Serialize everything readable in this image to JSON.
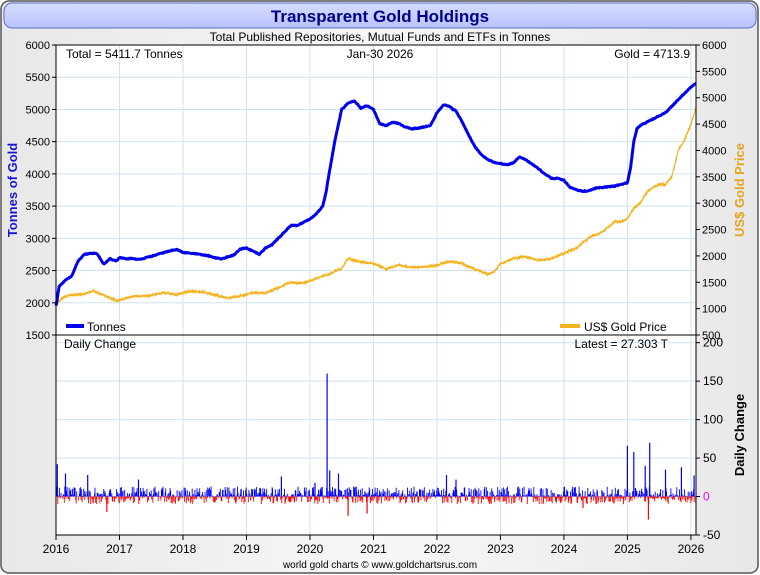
{
  "title": "Transparent Gold Holdings",
  "subtitle": "Total Published Repositories, Mutual Funds and ETFs in Tonnes",
  "footer": "world gold charts © www.goldchartsrus.com",
  "colors": {
    "tonnes": "#0000ee",
    "gold_price": "#f5b21c",
    "positive_change": "#0000ff",
    "negative_change": "#ff0000",
    "zero_label": "#ff00ff",
    "title_text": "#00008b",
    "grid": "#cfe3f2"
  },
  "chart_data": [
    {
      "type": "line",
      "name": "tonnes-and-price",
      "annotations": {
        "total": "Total = 5411.7 Tonnes",
        "date": "Jan-30  2026",
        "gold": "Gold = 4713.9"
      },
      "ylabel_left": "Tonnes of Gold",
      "ylabel_right": "US$ Gold Price",
      "ylim_left": [
        1500,
        6000
      ],
      "ylim_right": [
        500,
        6000
      ],
      "yticks_left": [
        1500,
        2000,
        2500,
        3000,
        3500,
        4000,
        4500,
        5000,
        5500,
        6000
      ],
      "yticks_right": [
        500,
        1000,
        1500,
        2000,
        2500,
        3000,
        3500,
        4000,
        4500,
        5000,
        5500,
        6000
      ],
      "xlim": [
        2016.0,
        2026.08
      ],
      "xticks": [
        "2016",
        "2017",
        "2018",
        "2019",
        "2020",
        "2021",
        "2022",
        "2023",
        "2024",
        "2025",
        "2026"
      ],
      "grid": true,
      "legend": [
        {
          "label": "Tonnes",
          "position": "bottom-left"
        },
        {
          "label": "US$ Gold Price",
          "position": "bottom-right"
        }
      ],
      "series": [
        {
          "name": "Tonnes",
          "axis": "left",
          "x": [
            2016.0,
            2016.05,
            2016.15,
            2016.25,
            2016.35,
            2016.45,
            2016.55,
            2016.65,
            2016.75,
            2016.85,
            2016.95,
            2017.0,
            2017.1,
            2017.2,
            2017.3,
            2017.5,
            2017.7,
            2017.9,
            2018.0,
            2018.2,
            2018.4,
            2018.5,
            2018.6,
            2018.7,
            2018.8,
            2018.9,
            2019.0,
            2019.1,
            2019.2,
            2019.3,
            2019.4,
            2019.5,
            2019.6,
            2019.7,
            2019.8,
            2019.9,
            2020.0,
            2020.1,
            2020.2,
            2020.25,
            2020.3,
            2020.4,
            2020.5,
            2020.6,
            2020.7,
            2020.75,
            2020.8,
            2020.9,
            2021.0,
            2021.1,
            2021.2,
            2021.3,
            2021.4,
            2021.5,
            2021.6,
            2021.7,
            2021.8,
            2021.9,
            2022.0,
            2022.1,
            2022.2,
            2022.25,
            2022.3,
            2022.4,
            2022.5,
            2022.6,
            2022.7,
            2022.8,
            2022.9,
            2023.0,
            2023.1,
            2023.2,
            2023.3,
            2023.4,
            2023.5,
            2023.6,
            2023.7,
            2023.8,
            2023.9,
            2024.0,
            2024.1,
            2024.2,
            2024.3,
            2024.4,
            2024.5,
            2024.6,
            2024.7,
            2024.8,
            2024.9,
            2025.0,
            2025.05,
            2025.1,
            2025.15,
            2025.2,
            2025.3,
            2025.4,
            2025.5,
            2025.6,
            2025.7,
            2025.8,
            2025.9,
            2026.0,
            2026.08
          ],
          "values": [
            1950,
            2250,
            2350,
            2420,
            2650,
            2750,
            2770,
            2760,
            2600,
            2680,
            2650,
            2700,
            2680,
            2690,
            2670,
            2720,
            2780,
            2830,
            2780,
            2760,
            2730,
            2700,
            2680,
            2710,
            2740,
            2830,
            2850,
            2800,
            2750,
            2850,
            2900,
            3000,
            3100,
            3200,
            3200,
            3250,
            3300,
            3380,
            3500,
            3700,
            4000,
            4550,
            5000,
            5100,
            5130,
            5080,
            5020,
            5060,
            5000,
            4780,
            4750,
            4800,
            4780,
            4730,
            4700,
            4710,
            4730,
            4750,
            4950,
            5070,
            5050,
            5000,
            4980,
            4800,
            4600,
            4420,
            4300,
            4220,
            4180,
            4160,
            4140,
            4170,
            4260,
            4220,
            4150,
            4080,
            4000,
            3930,
            3930,
            3900,
            3790,
            3750,
            3730,
            3740,
            3780,
            3790,
            3800,
            3810,
            3840,
            3860,
            4100,
            4500,
            4700,
            4750,
            4800,
            4850,
            4900,
            4950,
            5050,
            5150,
            5250,
            5350,
            5400
          ]
        },
        {
          "name": "US$ Gold Price",
          "axis": "right",
          "x": [
            2016.0,
            2016.1,
            2016.2,
            2016.4,
            2016.6,
            2016.8,
            2016.95,
            2017.2,
            2017.5,
            2017.7,
            2017.9,
            2018.1,
            2018.3,
            2018.5,
            2018.7,
            2018.9,
            2019.1,
            2019.3,
            2019.5,
            2019.7,
            2019.9,
            2020.1,
            2020.2,
            2020.3,
            2020.5,
            2020.6,
            2020.75,
            2020.9,
            2021.0,
            2021.2,
            2021.4,
            2021.6,
            2021.8,
            2022.0,
            2022.2,
            2022.4,
            2022.6,
            2022.8,
            2022.9,
            2023.0,
            2023.2,
            2023.4,
            2023.6,
            2023.8,
            2024.0,
            2024.2,
            2024.4,
            2024.6,
            2024.8,
            2024.9,
            2025.0,
            2025.1,
            2025.2,
            2025.3,
            2025.4,
            2025.5,
            2025.6,
            2025.7,
            2025.8,
            2025.9,
            2026.0,
            2026.08
          ],
          "values": [
            1100,
            1200,
            1250,
            1270,
            1330,
            1230,
            1150,
            1230,
            1250,
            1300,
            1270,
            1330,
            1320,
            1260,
            1200,
            1240,
            1300,
            1290,
            1400,
            1500,
            1480,
            1570,
            1620,
            1650,
            1770,
            1950,
            1900,
            1870,
            1860,
            1750,
            1830,
            1780,
            1790,
            1820,
            1900,
            1850,
            1750,
            1650,
            1700,
            1850,
            1950,
            1980,
            1920,
            1950,
            2050,
            2150,
            2350,
            2450,
            2650,
            2650,
            2700,
            2900,
            3000,
            3200,
            3300,
            3350,
            3350,
            3500,
            4000,
            4200,
            4500,
            4800
          ]
        }
      ]
    },
    {
      "type": "bar",
      "name": "daily-change",
      "label": "Daily Change",
      "latest": "Latest = 27.303 T",
      "ylabel": "Daily Change",
      "ylim": [
        -50,
        210
      ],
      "yticks": [
        -50,
        0,
        50,
        100,
        150,
        200
      ],
      "xlim": [
        2016.0,
        2026.08
      ],
      "xticks": [
        "2016",
        "2017",
        "2018",
        "2019",
        "2020",
        "2021",
        "2022",
        "2023",
        "2024",
        "2025",
        "2026"
      ],
      "grid": true,
      "spikes": [
        {
          "x": 2016.02,
          "value": 42
        },
        {
          "x": 2016.15,
          "value": 30
        },
        {
          "x": 2016.5,
          "value": 28
        },
        {
          "x": 2016.8,
          "value": -20
        },
        {
          "x": 2017.3,
          "value": 22
        },
        {
          "x": 2019.55,
          "value": 26
        },
        {
          "x": 2020.08,
          "value": 18
        },
        {
          "x": 2020.27,
          "value": 160
        },
        {
          "x": 2020.31,
          "value": 34
        },
        {
          "x": 2020.45,
          "value": 30
        },
        {
          "x": 2020.6,
          "value": -25
        },
        {
          "x": 2020.9,
          "value": -22
        },
        {
          "x": 2022.15,
          "value": 28
        },
        {
          "x": 2022.3,
          "value": 22
        },
        {
          "x": 2024.3,
          "value": -15
        },
        {
          "x": 2025.0,
          "value": 66
        },
        {
          "x": 2025.1,
          "value": 58
        },
        {
          "x": 2025.28,
          "value": 40
        },
        {
          "x": 2025.33,
          "value": -30
        },
        {
          "x": 2025.35,
          "value": 70
        },
        {
          "x": 2025.6,
          "value": 35
        },
        {
          "x": 2025.85,
          "value": 38
        },
        {
          "x": 2026.05,
          "value": 27.303
        }
      ]
    }
  ]
}
